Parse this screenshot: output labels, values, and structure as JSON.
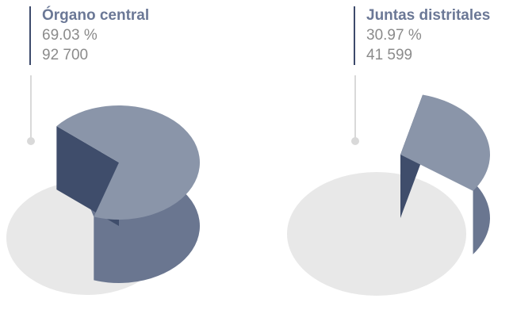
{
  "chart_data": {
    "type": "pie",
    "charts": [
      {
        "label": "Órgano central",
        "percent_text": "69.03 %",
        "value_text": "92 700",
        "value": 92700,
        "percent": 69.03
      },
      {
        "label": "Juntas distritales",
        "percent_text": "30.97 %",
        "value_text": "41 599",
        "value": 41599,
        "percent": 30.97
      }
    ]
  },
  "colors": {
    "highlight_top": "#8a95a9",
    "highlight_side": "#6a7690",
    "dark_face": "#3f4d6b",
    "background_disk": "#e8e8e8",
    "label_name": "#6b7896",
    "label_value": "#8b8b8b",
    "connector": "#d9d9d9"
  }
}
